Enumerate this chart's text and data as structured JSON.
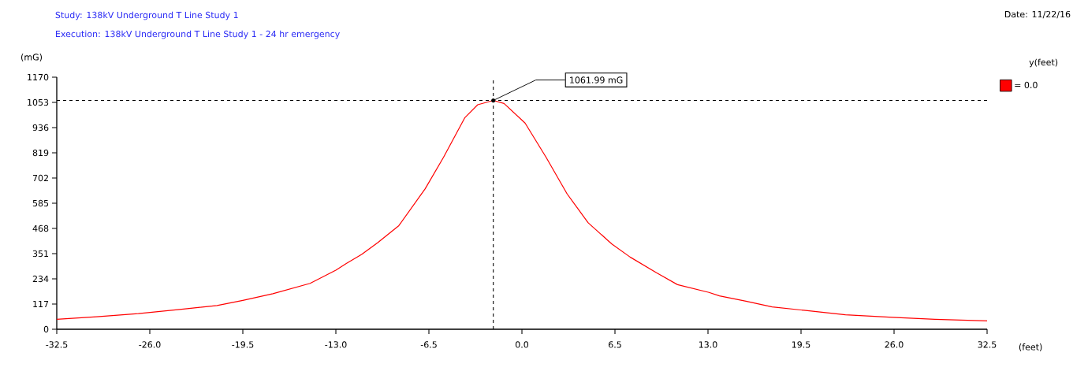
{
  "chart_data": {
    "type": "line",
    "title": "Study: 138kV Underground T Line Study 1",
    "subtitle": "Execution: 138kV Underground T Line Study 1 - 24 hr emergency",
    "xlabel": "(feet)",
    "ylabel": "(mG)",
    "legend_title": "y(feet)",
    "legend": "top right",
    "x": [
      -32.5,
      -29.7,
      -26.8,
      -23.65,
      -21.3,
      -19.5,
      -17.4,
      -14.8,
      -13.0,
      -12.27,
      -11.2,
      -10.07,
      -8.6,
      -6.76,
      -5.48,
      -4.0,
      -3.09,
      -2.0,
      -1.25,
      0.22,
      1.69,
      3.16,
      4.63,
      6.28,
      7.56,
      9.4,
      10.87,
      11.97,
      13.07,
      13.8,
      15.65,
      17.48,
      19.7,
      22.6,
      25.9,
      28.85,
      32.5
    ],
    "series": [
      {
        "name": "= 0.0",
        "color": "#ff0000",
        "values": [
          46,
          58,
          73,
          94,
          110,
          134,
          165,
          213,
          274,
          305,
          347,
          402,
          481,
          652,
          798,
          981,
          1042,
          1061.99,
          1048,
          957,
          798,
          628,
          494,
          396,
          335,
          262,
          207,
          189,
          171,
          155,
          130,
          104,
          88,
          67,
          55,
          46,
          39
        ]
      }
    ],
    "xlim": [
      -32.5,
      32.5
    ],
    "ylim": [
      0,
      1170
    ],
    "xticks": [
      -32.5,
      {
        "value": -26,
        "label": "-26.0"
      },
      -19.5,
      {
        "value": -13,
        "label": "-13.0"
      },
      -6.5,
      {
        "value": 0,
        "label": "0.0"
      },
      6.5,
      {
        "value": 13,
        "label": "13.0"
      },
      19.5,
      {
        "value": 26,
        "label": "26.0"
      },
      32.5
    ],
    "yticks": [
      0,
      117,
      234,
      351,
      468,
      585,
      702,
      819,
      936,
      1053,
      1170
    ],
    "ref_lines": [
      {
        "axis": "y",
        "value": 1061.99,
        "color": "#000000",
        "line_style": "dashed"
      },
      {
        "axis": "x",
        "value": -2.0,
        "color": "#000000",
        "line_style": "dashed"
      }
    ],
    "annotations": [
      {
        "text": "1061.99 mG",
        "x": -2.0,
        "y": 1061.99
      },
      "Date: 11/22/16"
    ]
  }
}
